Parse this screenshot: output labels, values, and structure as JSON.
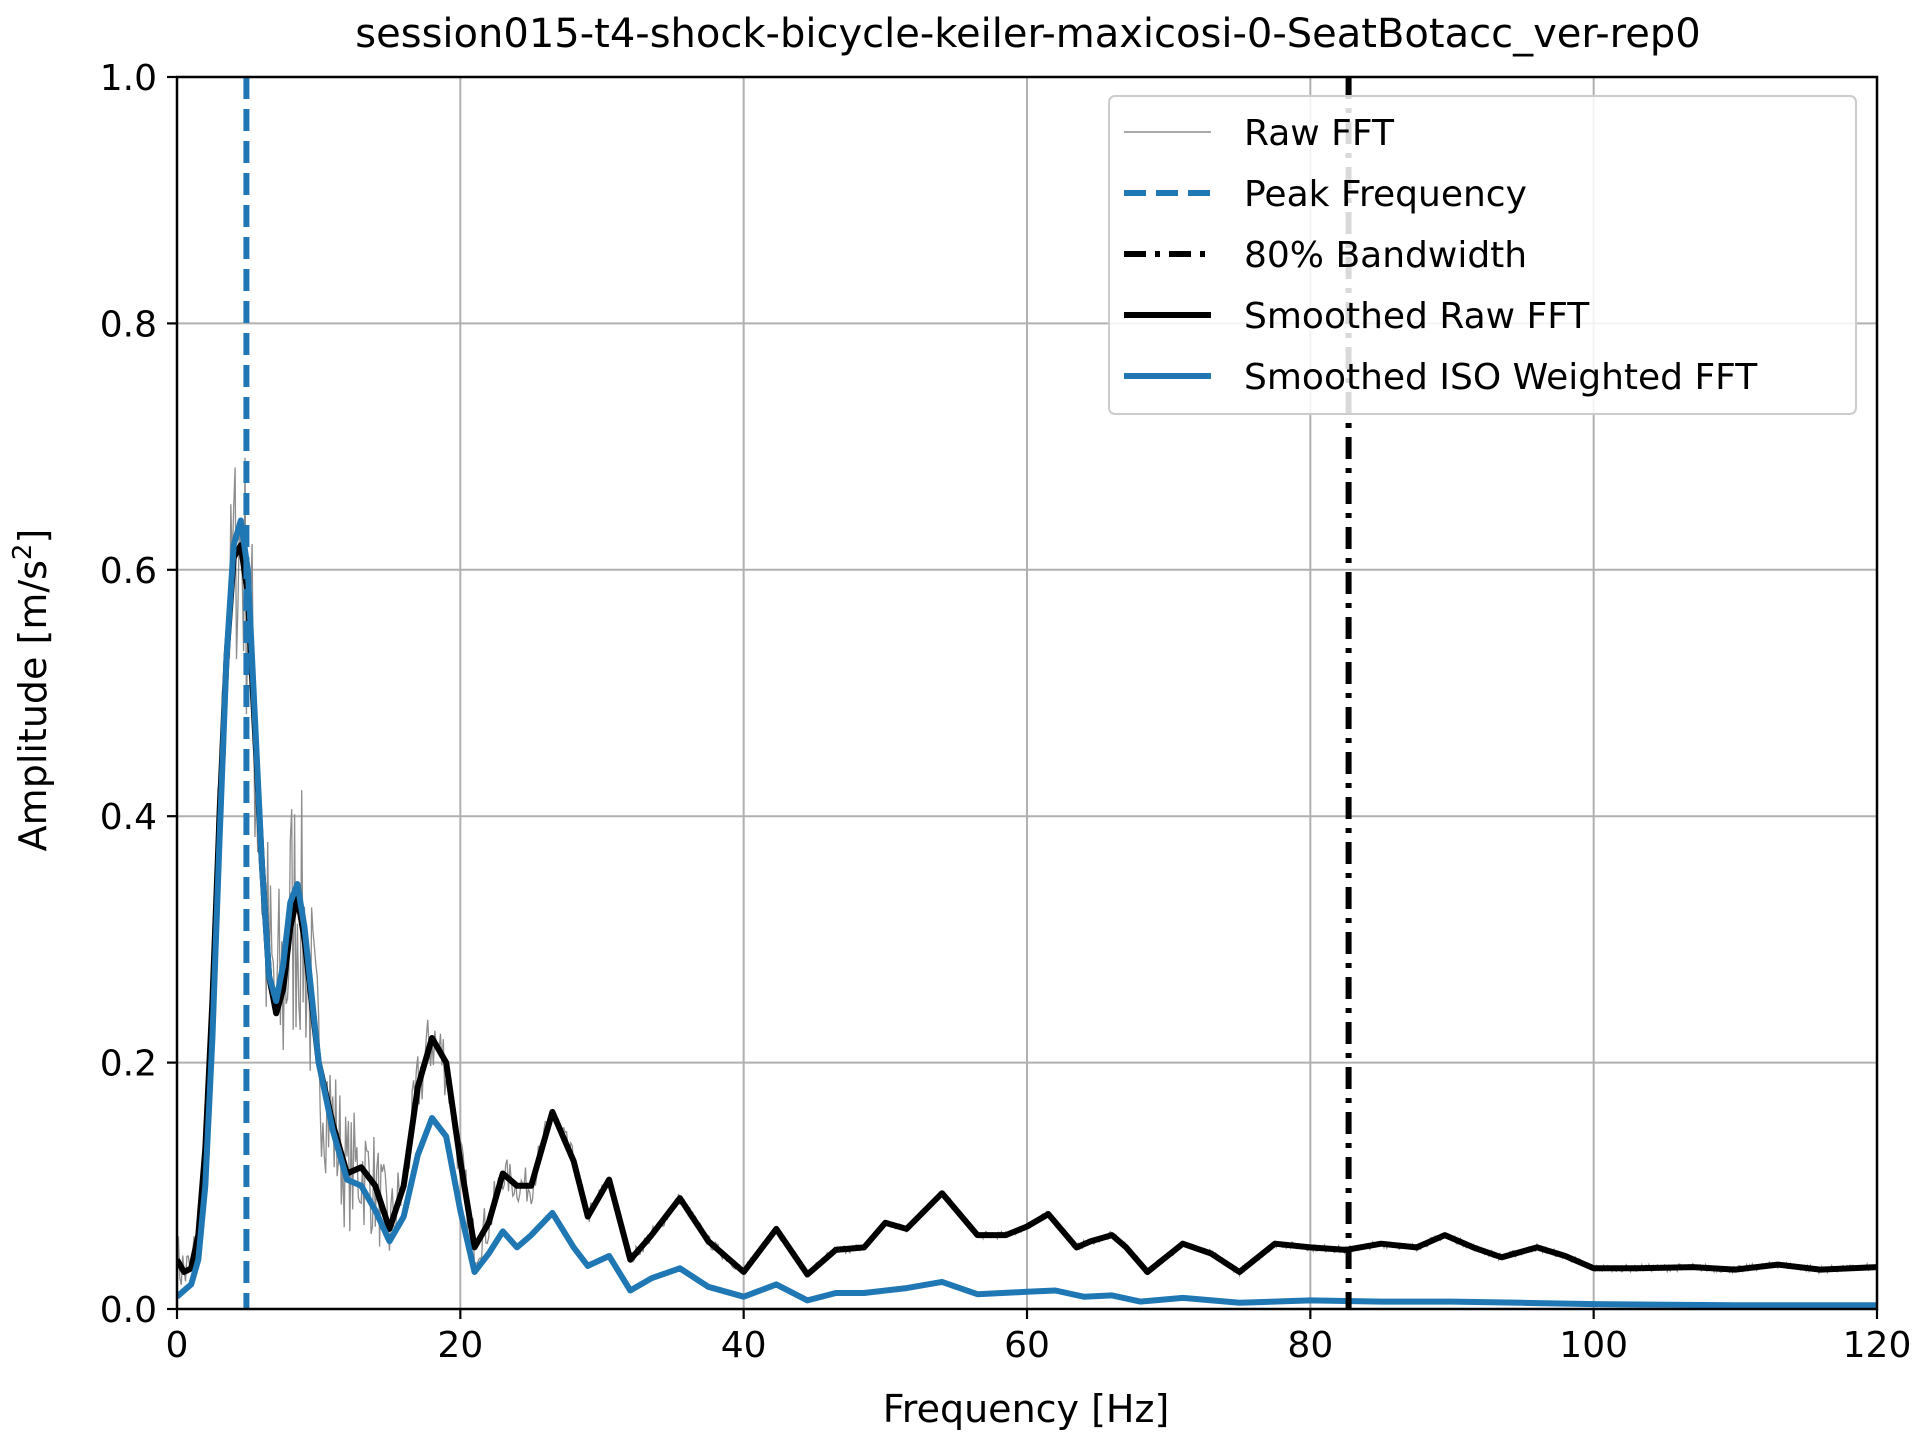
{
  "chart_data": {
    "type": "line",
    "title": "session015-t4-shock-bicycle-keiler-maxicosi-0-SeatBotacc_ver-rep0",
    "xlabel": "Frequency [Hz]",
    "ylabel_main": "Amplitude [m/s",
    "ylabel_sup": "2",
    "ylabel_end": "]",
    "xlim": [
      0,
      120
    ],
    "ylim": [
      0,
      1.0
    ],
    "xticks": [
      0,
      20,
      40,
      60,
      80,
      100,
      120
    ],
    "xtick_labels": [
      "0",
      "20",
      "40",
      "60",
      "80",
      "100",
      "120"
    ],
    "yticks": [
      0.0,
      0.2,
      0.4,
      0.6,
      0.8,
      1.0
    ],
    "ytick_labels": [
      "0.0",
      "0.2",
      "0.4",
      "0.6",
      "0.8",
      "1.0"
    ],
    "grid": true,
    "legend_position": "top-right",
    "legend": [
      {
        "label": "Raw FFT",
        "color": "#8c8c8c",
        "style": "thin-solid"
      },
      {
        "label": "Peak Frequency",
        "color": "#1f77b4",
        "style": "dashed"
      },
      {
        "label": "80% Bandwidth",
        "color": "#000000",
        "style": "dash-dot"
      },
      {
        "label": "Smoothed Raw FFT",
        "color": "#000000",
        "style": "solid"
      },
      {
        "label": "Smoothed ISO Weighted FFT",
        "color": "#1f77b4",
        "style": "solid"
      }
    ],
    "peak_frequency": 4.9,
    "bandwidth_80": 82.7,
    "smoothed_raw_fft": {
      "x": [
        0,
        0.5,
        1,
        1.5,
        2,
        2.5,
        3,
        3.5,
        4,
        4.5,
        5,
        5.5,
        6,
        6.5,
        7,
        7.5,
        8,
        8.5,
        9,
        9.5,
        10,
        11,
        12,
        13,
        14,
        15,
        16,
        17,
        18,
        19,
        20,
        21,
        22,
        23,
        24,
        25,
        26.5,
        28,
        29,
        30.5,
        32,
        33.5,
        35.5,
        37.5,
        40,
        42.3,
        44.5,
        46.5,
        48.5,
        50,
        51.5,
        54,
        56.5,
        58.5,
        60,
        61.5,
        63.5,
        64.5,
        66,
        67,
        68.5,
        71,
        73,
        75,
        77.5,
        80,
        82.5,
        85,
        87.5,
        89.5,
        91.5,
        93.5,
        96,
        98,
        100,
        103,
        107,
        110,
        113,
        116,
        120
      ],
      "y": [
        0.04,
        0.03,
        0.033,
        0.06,
        0.13,
        0.25,
        0.4,
        0.53,
        0.61,
        0.62,
        0.58,
        0.47,
        0.36,
        0.27,
        0.24,
        0.26,
        0.31,
        0.335,
        0.3,
        0.25,
        0.2,
        0.15,
        0.11,
        0.115,
        0.1,
        0.065,
        0.1,
        0.18,
        0.22,
        0.2,
        0.12,
        0.05,
        0.07,
        0.11,
        0.1,
        0.1,
        0.16,
        0.12,
        0.075,
        0.105,
        0.04,
        0.06,
        0.09,
        0.055,
        0.03,
        0.065,
        0.028,
        0.048,
        0.05,
        0.07,
        0.065,
        0.094,
        0.06,
        0.06,
        0.067,
        0.077,
        0.05,
        0.055,
        0.06,
        0.05,
        0.03,
        0.053,
        0.045,
        0.03,
        0.053,
        0.05,
        0.048,
        0.053,
        0.05,
        0.06,
        0.05,
        0.042,
        0.05,
        0.043,
        0.033,
        0.033,
        0.034,
        0.032,
        0.036,
        0.032,
        0.034
      ]
    },
    "smoothed_iso_weighted_fft": {
      "x": [
        0,
        0.5,
        1,
        1.5,
        2,
        2.5,
        3,
        3.5,
        4,
        4.5,
        5,
        5.5,
        6,
        6.5,
        7,
        7.5,
        8,
        8.5,
        9,
        9.5,
        10,
        11,
        12,
        13,
        14,
        15,
        16,
        17,
        18,
        19,
        20,
        21,
        22,
        23,
        24,
        25,
        26.5,
        28,
        29,
        30.5,
        32,
        33.5,
        35.5,
        37.5,
        40,
        42.3,
        44.5,
        46.5,
        48.5,
        51.5,
        54,
        56.5,
        60,
        62,
        64,
        66,
        68,
        71,
        75,
        80,
        85,
        90,
        95,
        100,
        110,
        120
      ],
      "y": [
        0.01,
        0.015,
        0.02,
        0.04,
        0.1,
        0.22,
        0.38,
        0.53,
        0.62,
        0.64,
        0.6,
        0.48,
        0.36,
        0.27,
        0.25,
        0.28,
        0.33,
        0.345,
        0.31,
        0.255,
        0.2,
        0.145,
        0.105,
        0.1,
        0.08,
        0.055,
        0.075,
        0.125,
        0.155,
        0.14,
        0.08,
        0.03,
        0.045,
        0.063,
        0.05,
        0.06,
        0.078,
        0.05,
        0.035,
        0.043,
        0.015,
        0.025,
        0.033,
        0.018,
        0.01,
        0.02,
        0.007,
        0.013,
        0.013,
        0.017,
        0.022,
        0.012,
        0.014,
        0.015,
        0.01,
        0.011,
        0.006,
        0.009,
        0.005,
        0.007,
        0.006,
        0.006,
        0.005,
        0.004,
        0.003,
        0.003
      ]
    },
    "raw_fft_noise": {
      "x": [
        0,
        0.5,
        1,
        1.5,
        2,
        2.5,
        3,
        3.5,
        4,
        4.5,
        5,
        5.5,
        6,
        6.5,
        7,
        7.5,
        8,
        8.5,
        9,
        9.5,
        10,
        11,
        12,
        13,
        14,
        15,
        16,
        17,
        18,
        19,
        20,
        21,
        22,
        23,
        24,
        25,
        26.5,
        28,
        29,
        30.5,
        32,
        33.5,
        35.5,
        37.5,
        40,
        45,
        50,
        60,
        80,
        120
      ],
      "y": [
        0.025,
        0.025,
        0.02,
        0.03,
        0.04,
        0.05,
        0.07,
        0.08,
        0.09,
        0.11,
        0.12,
        0.13,
        0.12,
        0.11,
        0.11,
        0.1,
        0.12,
        0.12,
        0.1,
        0.09,
        0.07,
        0.06,
        0.05,
        0.05,
        0.045,
        0.035,
        0.03,
        0.03,
        0.03,
        0.03,
        0.025,
        0.02,
        0.02,
        0.015,
        0.015,
        0.015,
        0.012,
        0.01,
        0.008,
        0.008,
        0.006,
        0.006,
        0.006,
        0.005,
        0.004,
        0.004,
        0.003,
        0.003,
        0.003,
        0.003
      ]
    }
  }
}
